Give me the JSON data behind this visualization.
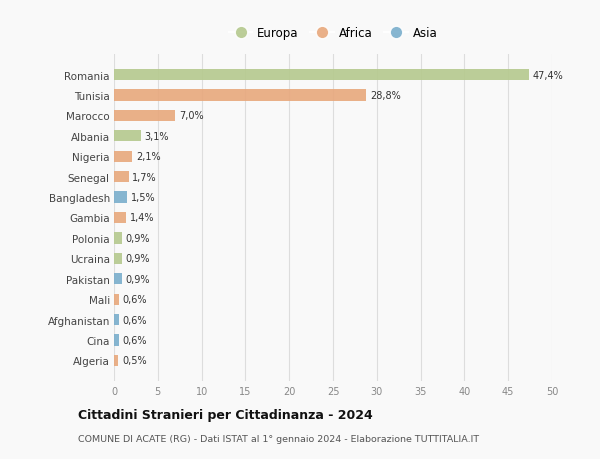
{
  "categories": [
    "Romania",
    "Tunisia",
    "Marocco",
    "Albania",
    "Nigeria",
    "Senegal",
    "Bangladesh",
    "Gambia",
    "Polonia",
    "Ucraina",
    "Pakistan",
    "Mali",
    "Afghanistan",
    "Cina",
    "Algeria"
  ],
  "values": [
    47.4,
    28.8,
    7.0,
    3.1,
    2.1,
    1.7,
    1.5,
    1.4,
    0.9,
    0.9,
    0.9,
    0.6,
    0.6,
    0.6,
    0.5
  ],
  "continents": [
    "Europa",
    "Africa",
    "Africa",
    "Europa",
    "Africa",
    "Africa",
    "Asia",
    "Africa",
    "Europa",
    "Europa",
    "Asia",
    "Africa",
    "Asia",
    "Asia",
    "Africa"
  ],
  "labels": [
    "47,4%",
    "28,8%",
    "7,0%",
    "3,1%",
    "2,1%",
    "1,7%",
    "1,5%",
    "1,4%",
    "0,9%",
    "0,9%",
    "0,9%",
    "0,6%",
    "0,6%",
    "0,6%",
    "0,5%"
  ],
  "colors": {
    "Europa": "#b5c98e",
    "Africa": "#e8a87c",
    "Asia": "#7aaecc"
  },
  "title": "Cittadini Stranieri per Cittadinanza - 2024",
  "subtitle": "COMUNE DI ACATE (RG) - Dati ISTAT al 1° gennaio 2024 - Elaborazione TUTTITALIA.IT",
  "xlim": [
    0,
    50
  ],
  "xticks": [
    0,
    5,
    10,
    15,
    20,
    25,
    30,
    35,
    40,
    45,
    50
  ],
  "bg_color": "#f9f9f9",
  "grid_color": "#dddddd",
  "legend_order": [
    "Europa",
    "Africa",
    "Asia"
  ]
}
